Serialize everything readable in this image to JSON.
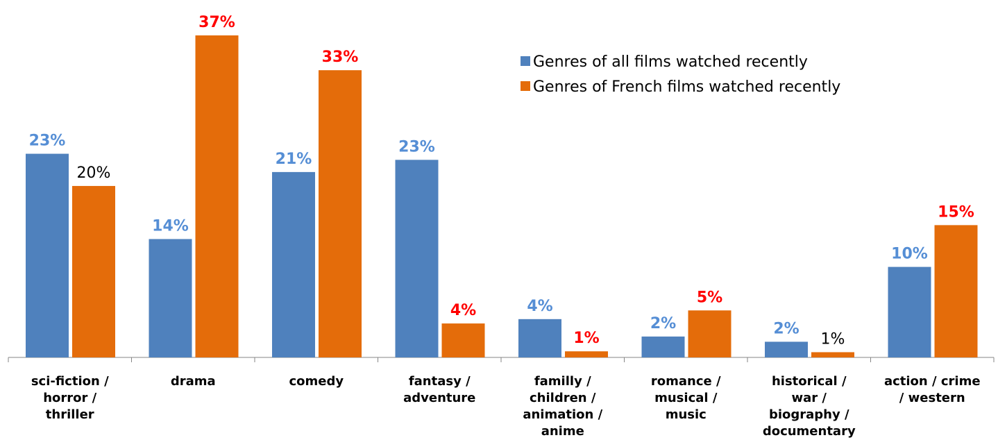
{
  "chart_data": {
    "type": "bar",
    "categories": [
      [
        "sci-fiction /",
        "horror /",
        "thriller"
      ],
      [
        "drama"
      ],
      [
        "comedy"
      ],
      [
        "fantasy /",
        "adventure"
      ],
      [
        "familly /",
        "children /",
        "animation /",
        "anime"
      ],
      [
        "romance /",
        "musical /",
        "music"
      ],
      [
        "historical /",
        "war /",
        "biography /",
        "documentary"
      ],
      [
        "action / crime",
        "/ western"
      ]
    ],
    "series": [
      {
        "name": "Genres of all films watched recently",
        "color": "#4f81bd",
        "values": [
          23.4,
          13.6,
          21.3,
          22.7,
          4.4,
          2.4,
          1.8,
          10.4
        ],
        "value_labels": [
          "23%",
          "14%",
          "21%",
          "23%",
          "4%",
          "2%",
          "2%",
          "10%"
        ],
        "value_label_colors": [
          "#558ed5",
          "#558ed5",
          "#558ed5",
          "#558ed5",
          "#558ed5",
          "#558ed5",
          "#558ed5",
          "#558ed5"
        ]
      },
      {
        "name": "Genres of French films watched recently",
        "color": "#e46c0a",
        "values": [
          19.7,
          37,
          33,
          3.9,
          0.7,
          5.4,
          0.6,
          15.2
        ],
        "value_labels": [
          "20%",
          "37%",
          "33%",
          "4%",
          "1%",
          "5%",
          "1%",
          "15%"
        ],
        "value_label_colors": [
          "#000000",
          "#ff0000",
          "#ff0000",
          "#ff0000",
          "#ff0000",
          "#ff0000",
          "#000000",
          "#ff0000"
        ]
      }
    ],
    "legend": "top-right"
  }
}
